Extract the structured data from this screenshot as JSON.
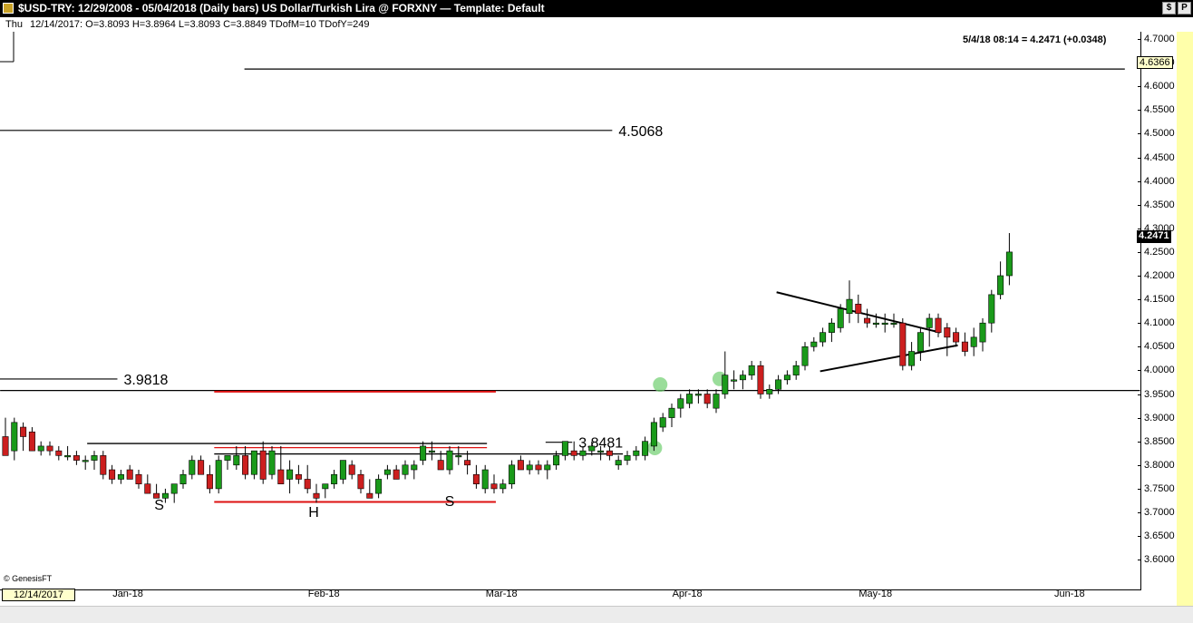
{
  "window": {
    "title": "$USD-TRY:  12/29/2008 - 05/04/2018  (Daily bars)   US Dollar/Turkish Lira @ FORXNY  —  Template: Default",
    "buttons": [
      "$",
      "P"
    ]
  },
  "info_bar": {
    "day": "Thu",
    "ohlc": "12/14/2017:  O=3.8093  H=3.8964  L=3.8093  C=3.8849  TDofM=10  TDofY=249"
  },
  "last_quote": "5/4/18 08:14 = 4.2471 (+0.0348)",
  "price_boxes": {
    "top": "4.6366",
    "last": "4.2471"
  },
  "cursor_date": "12/14/2017",
  "copyright": "© GenesisFT",
  "colors": {
    "up": "#1a9a1a",
    "down": "#cc1f1f",
    "red_line": "#dd1111",
    "highlight": "#6fcf6f"
  },
  "chart_data": {
    "type": "candlestick",
    "title": "$USD-TRY",
    "y_axis": {
      "ylim": [
        3.56,
        4.72
      ],
      "ticks": [
        3.6,
        3.65,
        3.7,
        3.75,
        3.8,
        3.85,
        3.9,
        3.95,
        4.0,
        4.05,
        4.1,
        4.15,
        4.2,
        4.25,
        4.3,
        4.35,
        4.4,
        4.45,
        4.5,
        4.55,
        4.6,
        4.65,
        4.7
      ],
      "tick_labels": [
        "3.6000",
        "3.6500",
        "3.7000",
        "3.7500",
        "3.8000",
        "3.8500",
        "3.9000",
        "3.9500",
        "4.0000",
        "4.0500",
        "4.1000",
        "4.1500",
        "4.2000",
        "4.2500",
        "4.3000",
        "4.3500",
        "4.4000",
        "4.4500",
        "4.5000",
        "4.5500",
        "4.6000",
        "4.6500",
        "4.7000"
      ]
    },
    "x_axis": {
      "labels": [
        {
          "text": "Jan-18",
          "bar": 14
        },
        {
          "text": "Feb-18",
          "bar": 36
        },
        {
          "text": "Mar-18",
          "bar": 56
        },
        {
          "text": "Apr-18",
          "bar": 77
        },
        {
          "text": "May-18",
          "bar": 98
        },
        {
          "text": "Jun-18",
          "bar": 120
        }
      ]
    },
    "bars": [
      [
        3.86,
        3.9,
        3.84,
        3.82
      ],
      [
        3.83,
        3.9,
        3.81,
        3.89
      ],
      [
        3.88,
        3.89,
        3.83,
        3.86
      ],
      [
        3.87,
        3.88,
        3.83,
        3.83
      ],
      [
        3.83,
        3.85,
        3.82,
        3.84
      ],
      [
        3.84,
        3.85,
        3.82,
        3.83
      ],
      [
        3.83,
        3.84,
        3.81,
        3.82
      ],
      [
        3.82,
        3.84,
        3.81,
        3.82
      ],
      [
        3.82,
        3.83,
        3.8,
        3.81
      ],
      [
        3.81,
        3.82,
        3.79,
        3.81
      ],
      [
        3.81,
        3.83,
        3.79,
        3.82
      ],
      [
        3.82,
        3.83,
        3.77,
        3.78
      ],
      [
        3.79,
        3.8,
        3.76,
        3.77
      ],
      [
        3.77,
        3.79,
        3.76,
        3.78
      ],
      [
        3.79,
        3.8,
        3.77,
        3.77
      ],
      [
        3.78,
        3.79,
        3.75,
        3.76
      ],
      [
        3.76,
        3.78,
        3.74,
        3.74
      ],
      [
        3.74,
        3.76,
        3.73,
        3.73
      ],
      [
        3.73,
        3.75,
        3.72,
        3.74
      ],
      [
        3.74,
        3.76,
        3.72,
        3.76
      ],
      [
        3.76,
        3.79,
        3.75,
        3.78
      ],
      [
        3.78,
        3.82,
        3.77,
        3.81
      ],
      [
        3.81,
        3.82,
        3.78,
        3.78
      ],
      [
        3.78,
        3.8,
        3.74,
        3.75
      ],
      [
        3.75,
        3.82,
        3.74,
        3.81
      ],
      [
        3.81,
        3.82,
        3.79,
        3.82
      ],
      [
        3.8,
        3.84,
        3.79,
        3.82
      ],
      [
        3.82,
        3.84,
        3.77,
        3.78
      ],
      [
        3.78,
        3.83,
        3.77,
        3.83
      ],
      [
        3.83,
        3.85,
        3.76,
        3.77
      ],
      [
        3.78,
        3.84,
        3.77,
        3.83
      ],
      [
        3.79,
        3.84,
        3.76,
        3.76
      ],
      [
        3.77,
        3.81,
        3.74,
        3.79
      ],
      [
        3.78,
        3.8,
        3.76,
        3.77
      ],
      [
        3.77,
        3.8,
        3.74,
        3.75
      ],
      [
        3.74,
        3.76,
        3.72,
        3.73
      ],
      [
        3.75,
        3.76,
        3.73,
        3.76
      ],
      [
        3.76,
        3.79,
        3.75,
        3.78
      ],
      [
        3.77,
        3.81,
        3.76,
        3.81
      ],
      [
        3.8,
        3.81,
        3.77,
        3.78
      ],
      [
        3.78,
        3.79,
        3.74,
        3.75
      ],
      [
        3.74,
        3.77,
        3.73,
        3.73
      ],
      [
        3.74,
        3.78,
        3.73,
        3.77
      ],
      [
        3.78,
        3.8,
        3.77,
        3.79
      ],
      [
        3.79,
        3.8,
        3.77,
        3.77
      ],
      [
        3.78,
        3.81,
        3.77,
        3.8
      ],
      [
        3.79,
        3.81,
        3.77,
        3.8
      ],
      [
        3.81,
        3.85,
        3.8,
        3.84
      ],
      [
        3.83,
        3.85,
        3.81,
        3.83
      ],
      [
        3.81,
        3.83,
        3.79,
        3.79
      ],
      [
        3.79,
        3.84,
        3.78,
        3.83
      ],
      [
        3.82,
        3.84,
        3.8,
        3.82
      ],
      [
        3.81,
        3.83,
        3.78,
        3.8
      ],
      [
        3.78,
        3.8,
        3.75,
        3.76
      ],
      [
        3.75,
        3.8,
        3.74,
        3.79
      ],
      [
        3.76,
        3.78,
        3.74,
        3.75
      ],
      [
        3.75,
        3.77,
        3.74,
        3.76
      ],
      [
        3.76,
        3.81,
        3.75,
        3.8
      ],
      [
        3.81,
        3.82,
        3.79,
        3.79
      ],
      [
        3.79,
        3.81,
        3.78,
        3.8
      ],
      [
        3.8,
        3.81,
        3.78,
        3.79
      ],
      [
        3.79,
        3.81,
        3.77,
        3.8
      ],
      [
        3.8,
        3.83,
        3.79,
        3.82
      ],
      [
        3.82,
        3.85,
        3.81,
        3.85
      ],
      [
        3.83,
        3.85,
        3.81,
        3.82
      ],
      [
        3.82,
        3.84,
        3.81,
        3.83
      ],
      [
        3.83,
        3.85,
        3.82,
        3.84
      ],
      [
        3.83,
        3.84,
        3.81,
        3.83
      ],
      [
        3.83,
        3.84,
        3.81,
        3.82
      ],
      [
        3.8,
        3.82,
        3.79,
        3.81
      ],
      [
        3.81,
        3.83,
        3.8,
        3.82
      ],
      [
        3.82,
        3.84,
        3.81,
        3.83
      ],
      [
        3.82,
        3.86,
        3.81,
        3.85
      ],
      [
        3.84,
        3.9,
        3.83,
        3.89
      ],
      [
        3.88,
        3.91,
        3.87,
        3.9
      ],
      [
        3.9,
        3.93,
        3.88,
        3.92
      ],
      [
        3.92,
        3.95,
        3.9,
        3.94
      ],
      [
        3.93,
        3.96,
        3.92,
        3.95
      ],
      [
        3.95,
        3.96,
        3.93,
        3.95
      ],
      [
        3.95,
        3.96,
        3.92,
        3.93
      ],
      [
        3.92,
        3.96,
        3.91,
        3.95
      ],
      [
        3.95,
        4.04,
        3.94,
        3.99
      ],
      [
        3.98,
        4.0,
        3.96,
        3.98
      ],
      [
        3.98,
        4.0,
        3.96,
        3.99
      ],
      [
        3.99,
        4.02,
        3.98,
        4.01
      ],
      [
        4.01,
        4.02,
        3.94,
        3.95
      ],
      [
        3.95,
        3.97,
        3.94,
        3.96
      ],
      [
        3.96,
        3.99,
        3.95,
        3.98
      ],
      [
        3.98,
        4.0,
        3.97,
        3.99
      ],
      [
        3.99,
        4.02,
        3.98,
        4.01
      ],
      [
        4.01,
        4.06,
        4.0,
        4.05
      ],
      [
        4.05,
        4.07,
        4.04,
        4.06
      ],
      [
        4.06,
        4.09,
        4.05,
        4.08
      ],
      [
        4.08,
        4.11,
        4.06,
        4.1
      ],
      [
        4.09,
        4.14,
        4.08,
        4.13
      ],
      [
        4.12,
        4.19,
        4.1,
        4.15
      ],
      [
        4.14,
        4.16,
        4.1,
        4.12
      ],
      [
        4.11,
        4.13,
        4.09,
        4.1
      ],
      [
        4.1,
        4.12,
        4.09,
        4.1
      ],
      [
        4.1,
        4.12,
        4.08,
        4.1
      ],
      [
        4.1,
        4.12,
        4.09,
        4.1
      ],
      [
        4.1,
        4.11,
        4.0,
        4.01
      ],
      [
        4.01,
        4.06,
        4.0,
        4.04
      ],
      [
        4.04,
        4.09,
        4.02,
        4.08
      ],
      [
        4.09,
        4.12,
        4.05,
        4.11
      ],
      [
        4.11,
        4.12,
        4.07,
        4.08
      ],
      [
        4.09,
        4.1,
        4.03,
        4.07
      ],
      [
        4.08,
        4.09,
        4.05,
        4.06
      ],
      [
        4.06,
        4.08,
        4.03,
        4.04
      ],
      [
        4.05,
        4.09,
        4.03,
        4.07
      ],
      [
        4.06,
        4.11,
        4.04,
        4.1
      ],
      [
        4.1,
        4.17,
        4.08,
        4.16
      ],
      [
        4.16,
        4.23,
        4.15,
        4.2
      ],
      [
        4.2,
        4.29,
        4.18,
        4.25
      ]
    ],
    "bar_x_start": 6,
    "bar_spacing": 9.8,
    "xlim_bars": [
      -0.6,
      127.7
    ],
    "levels": [
      {
        "label": "4.5068",
        "value": 4.5068,
        "x_end_bar": 68.3
      },
      {
        "label": "3.9818",
        "value": 3.9818,
        "x_end_bar": 12.6
      },
      {
        "label": "3.8481",
        "value": 3.8481,
        "x_end_bar": 63.8
      }
    ],
    "horizontal_lines": [
      {
        "value": 4.6366,
        "from_bar": 26.9,
        "to_bar": 126.0,
        "color": "black"
      },
      {
        "value": 3.9574,
        "from_bar": -0.6,
        "to_bar": 127.7,
        "color": "black"
      },
      {
        "value": 3.955,
        "from_bar": 23.5,
        "to_bar": 55.2,
        "color": "red"
      },
      {
        "value": 3.722,
        "from_bar": 23.5,
        "to_bar": 55.2,
        "color": "red"
      },
      {
        "value": 3.8455,
        "from_bar": 9.2,
        "to_bar": 54.2,
        "color": "black"
      },
      {
        "value": 3.8234,
        "from_bar": 23.5,
        "to_bar": 69.5,
        "color": "black"
      },
      {
        "value": 3.8368,
        "from_bar": 23.5,
        "to_bar": 54.2,
        "color": "red"
      }
    ],
    "trend_lines": [
      {
        "from": [
          86.8,
          4.165
        ],
        "to": [
          105.2,
          4.08
        ]
      },
      {
        "from": [
          91.7,
          3.998
        ],
        "to": [
          107.2,
          4.053
        ]
      }
    ],
    "highlights": [
      {
        "bar": 73.1,
        "value": 3.836
      },
      {
        "bar": 73.7,
        "value": 3.97
      },
      {
        "bar": 80.4,
        "value": 3.982
      }
    ],
    "pattern_labels": [
      {
        "text": "S",
        "bar": 17.3,
        "value": 3.706
      },
      {
        "text": "H",
        "bar": 34.7,
        "value": 3.69
      },
      {
        "text": "S",
        "bar": 50.0,
        "value": 3.713
      }
    ]
  }
}
